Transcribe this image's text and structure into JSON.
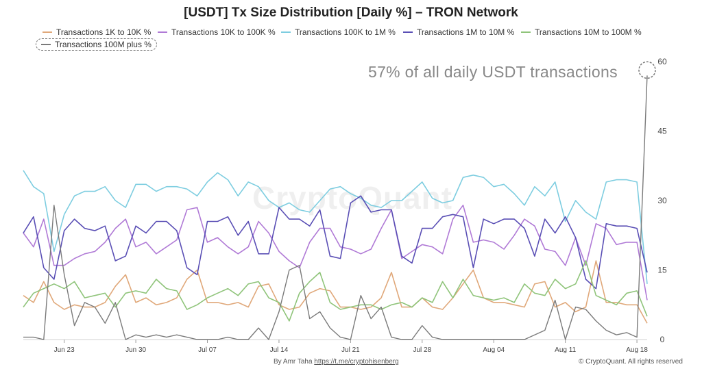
{
  "title": "[USDT] Tx Size Distribution [Daily %] – TRON Network",
  "annotation": "57% of all daily USDT transactions",
  "footer": {
    "author": "By Amr Taha",
    "link": "https://t.me/cryptohisenberg",
    "credit": "© CryptoQuant. All rights reserved"
  },
  "watermark": "CryptoQuant",
  "chart_data": {
    "type": "line",
    "title": "[USDT] Tx Size Distribution [Daily %] – TRON Network",
    "xlabel": "",
    "ylabel": "",
    "ylim": [
      0,
      60
    ],
    "yticks": [
      0,
      15,
      30,
      45,
      60
    ],
    "xtick_labels": [
      "Jun 23",
      "Jun 30",
      "Jul 07",
      "Jul 14",
      "Jul 21",
      "Jul 28",
      "Aug 04",
      "Aug 11",
      "Aug 18"
    ],
    "xtick_positions": [
      4,
      11,
      18,
      25,
      32,
      39,
      46,
      53,
      60
    ],
    "grid": false,
    "legend_position": "top",
    "series": [
      {
        "name": "Transactions 1K to 10K %",
        "color": "#e0a87a",
        "values": [
          9.5,
          8,
          12.5,
          8,
          6.5,
          7.5,
          7,
          7,
          8,
          11.5,
          14,
          8,
          9,
          7.5,
          8,
          9,
          13,
          15,
          8,
          8,
          7.5,
          8,
          7,
          11.5,
          12,
          7.5,
          6.5,
          7,
          10,
          11,
          10.5,
          7,
          7,
          6.5,
          7,
          9,
          14.5,
          7,
          7,
          9,
          7,
          6.5,
          9,
          12,
          15,
          9,
          8,
          8,
          7.5,
          7,
          12,
          12.5,
          7,
          8,
          6,
          7,
          17,
          8,
          8,
          7.5,
          7.5,
          3.5
        ]
      },
      {
        "name": "Transactions 10K to 100K %",
        "color": "#b07ad6",
        "values": [
          23,
          20,
          26,
          16,
          16,
          17.5,
          18.5,
          19,
          21,
          24,
          26,
          20,
          21,
          18.5,
          20,
          21.5,
          28,
          28.5,
          21,
          22,
          20,
          18.5,
          20,
          25.5,
          23,
          19,
          17,
          15.5,
          21,
          24,
          24,
          20,
          19.5,
          18.5,
          19.5,
          24,
          28,
          17.5,
          19,
          20.5,
          20,
          18.5,
          26,
          29,
          21,
          21.5,
          21,
          19.5,
          22.5,
          26,
          24.5,
          19.5,
          19,
          16,
          22,
          16,
          25,
          24,
          20.5,
          21,
          21,
          8.5
        ]
      },
      {
        "name": "Transactions 100K to 1M %",
        "color": "#7dcde0",
        "values": [
          36.5,
          33,
          31.5,
          19,
          27,
          31,
          32,
          32,
          33,
          30,
          28.5,
          33.5,
          33.5,
          32,
          33,
          33,
          32.5,
          31,
          34,
          36,
          34.5,
          31,
          34,
          33,
          30,
          28.5,
          29.5,
          28,
          27.5,
          30,
          32.5,
          33,
          31.5,
          30.5,
          29,
          28.5,
          30,
          30,
          32,
          34,
          30.5,
          29.5,
          30,
          35,
          35.5,
          35,
          33,
          33.5,
          31.5,
          29,
          33,
          31,
          34,
          25.5,
          30,
          27.5,
          26,
          34,
          34.5,
          34.5,
          34,
          12
        ]
      },
      {
        "name": "Transactions 1M to 10M %",
        "color": "#5a4fb5",
        "values": [
          23,
          26.5,
          15.5,
          13,
          23.5,
          26,
          24,
          23.5,
          24.5,
          17,
          18,
          24.5,
          23,
          25.5,
          25.5,
          23.5,
          15.5,
          14,
          25.5,
          25.5,
          26.5,
          22.5,
          25.5,
          18.5,
          18.5,
          28.5,
          26,
          26,
          24.5,
          28,
          18,
          17.5,
          29.5,
          31,
          27.5,
          28,
          28,
          18,
          16.5,
          24,
          24,
          26.5,
          27,
          26.5,
          15.5,
          26,
          25,
          26,
          26,
          24,
          18,
          26,
          23,
          26.5,
          22,
          13,
          11,
          25,
          24.5,
          24.5,
          24,
          14.5
        ]
      },
      {
        "name": "Transactions 10M to 100M %",
        "color": "#8fc47a",
        "values": [
          7,
          10,
          11,
          12,
          11,
          12.5,
          9,
          9.5,
          10,
          7,
          10,
          10.5,
          10,
          13,
          11,
          10.5,
          6.5,
          7.5,
          9,
          10,
          11,
          9.5,
          12,
          12.5,
          9,
          8,
          4,
          10,
          12.5,
          14.5,
          8,
          6.5,
          7,
          7.5,
          7.5,
          6.5,
          7.5,
          8,
          7,
          9,
          8,
          12.5,
          9,
          13,
          9.5,
          9,
          8.5,
          9,
          8,
          12,
          10,
          9.5,
          13,
          11,
          12,
          17,
          9.5,
          8.5,
          7.5,
          10,
          10.5,
          5
        ]
      },
      {
        "name": "Transactions 100M plus %",
        "color": "#7a7a7a",
        "values": [
          0.5,
          0.5,
          0,
          29,
          14,
          3,
          8,
          7,
          3.5,
          8,
          0,
          1,
          0.5,
          1,
          0.5,
          1,
          0.5,
          0,
          0,
          0,
          0.5,
          0,
          0,
          2.5,
          0,
          6,
          15,
          16,
          4.5,
          6,
          2.5,
          0.5,
          0,
          9.5,
          4.5,
          7,
          0.5,
          0,
          0,
          3,
          0.5,
          0,
          0,
          0,
          0,
          0,
          0,
          0,
          0,
          0,
          1,
          2,
          8.5,
          0,
          7,
          6.5,
          4,
          2,
          1,
          1.5,
          0.5,
          57
        ]
      }
    ]
  }
}
